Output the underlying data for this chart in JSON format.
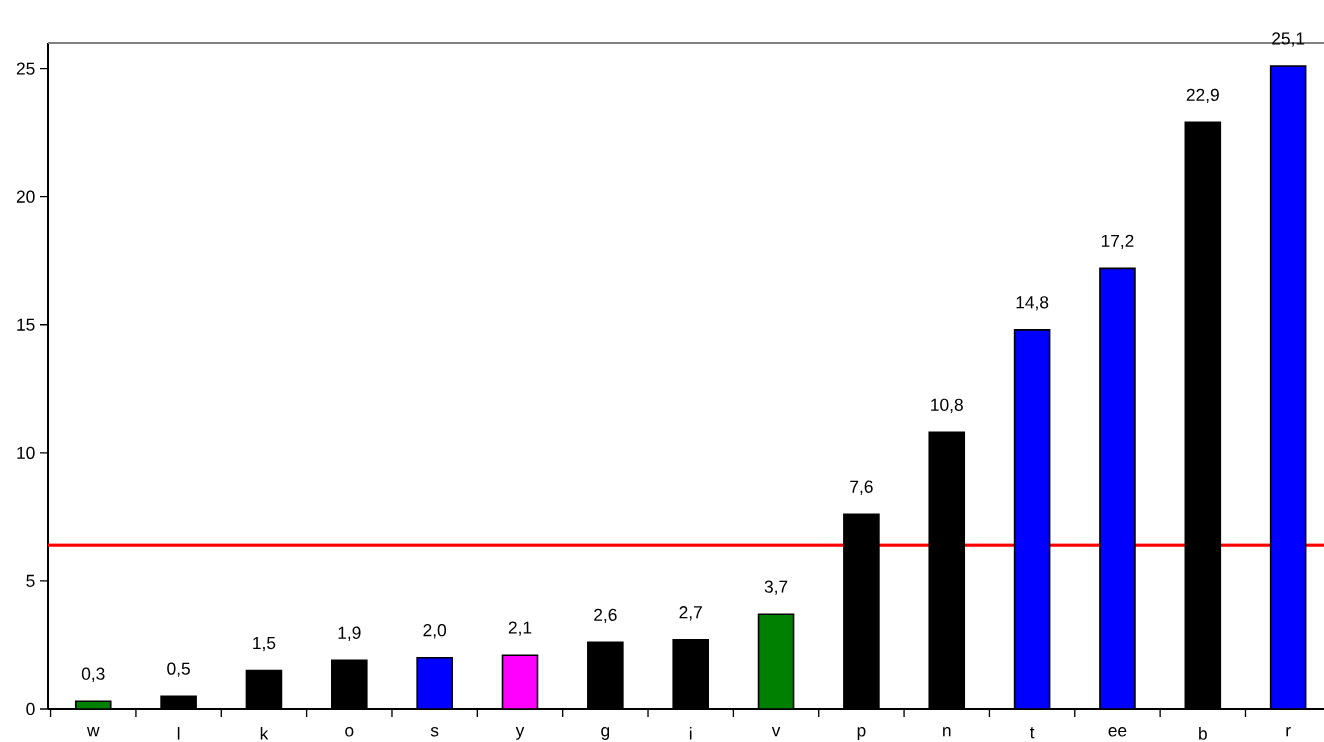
{
  "chart_data": {
    "type": "bar",
    "categories": [
      "w",
      "l",
      "k",
      "o",
      "s",
      "y",
      "g",
      "i",
      "v",
      "p",
      "n",
      "t",
      "ee",
      "b",
      "r"
    ],
    "values": [
      0.3,
      0.5,
      1.5,
      1.9,
      2.0,
      2.1,
      2.6,
      2.7,
      3.7,
      7.6,
      10.8,
      14.8,
      17.2,
      22.9,
      25.1
    ],
    "value_labels": [
      "0,3",
      "0,5",
      "1,5",
      "1,9",
      "2,0",
      "2,1",
      "2,6",
      "2,7",
      "3,7",
      "7,6",
      "10,8",
      "14,8",
      "17,2",
      "22,9",
      "25,1"
    ],
    "colors": [
      "#008000",
      "#000000",
      "#000000",
      "#000000",
      "#0000ff",
      "#ff00ff",
      "#000000",
      "#000000",
      "#008000",
      "#000000",
      "#000000",
      "#0000ff",
      "#0000ff",
      "#000000",
      "#0000ff"
    ],
    "ylim": [
      0,
      26
    ],
    "yticks": [
      0,
      5,
      10,
      15,
      20,
      25
    ],
    "grid": false,
    "ref_lines": [
      {
        "axis": "y",
        "value": 6.4,
        "color": "#ff0000"
      }
    ]
  }
}
